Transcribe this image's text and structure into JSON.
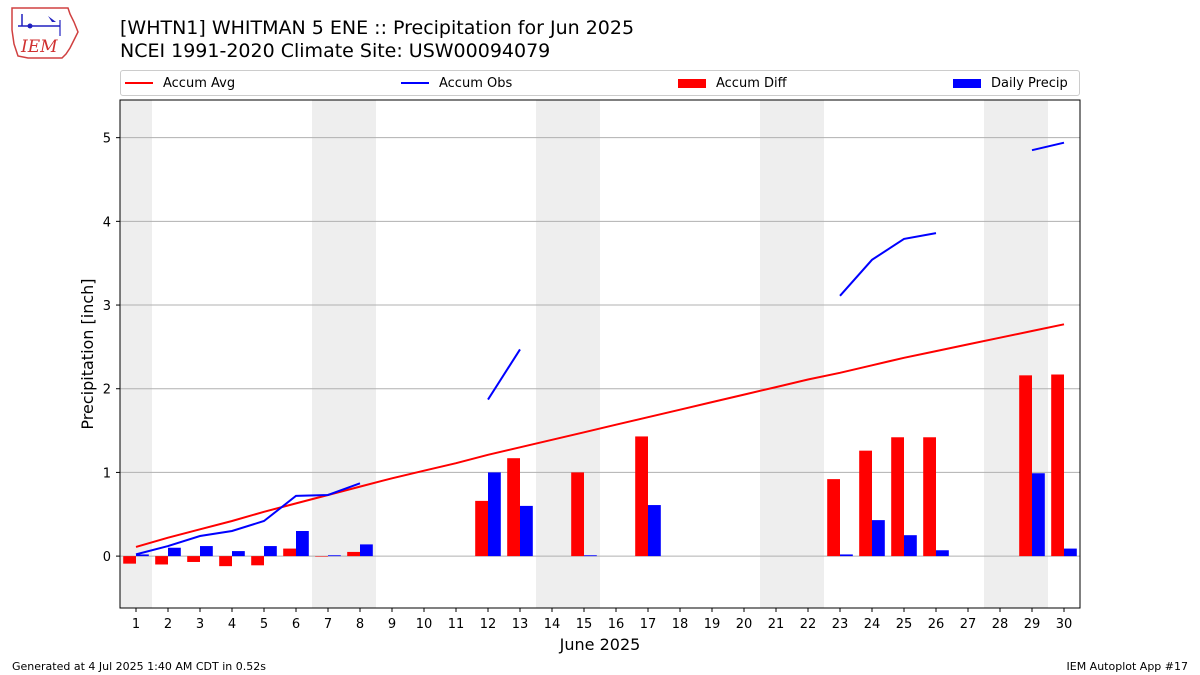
{
  "header": {
    "logo_text": "IEM",
    "title_line1": "[WHTN1] WHITMAN 5 ENE :: Precipitation for Jun 2025",
    "title_line2": "NCEI 1991-2020 Climate Site: USW00094079"
  },
  "legend": [
    {
      "label": "Accum Avg",
      "kind": "line",
      "color": "#ff0000"
    },
    {
      "label": "Accum Obs",
      "kind": "line",
      "color": "#0000ff"
    },
    {
      "label": "Accum Diff",
      "kind": "patch",
      "color": "#ff0000"
    },
    {
      "label": "Daily Precip",
      "kind": "patch",
      "color": "#0000ff"
    }
  ],
  "footer": {
    "left": "Generated at 4 Jul 2025 1:40 AM CDT in 0.52s",
    "right": "IEM Autoplot App #17"
  },
  "chart_data": {
    "type": "bar",
    "xlabel": "June 2025",
    "ylabel": "Precipitation [inch]",
    "ylim": [
      -0.62,
      5.45
    ],
    "yticks": [
      0,
      1,
      2,
      3,
      4,
      5
    ],
    "grid": "horizontal",
    "weekend_shading_days": [
      1,
      7,
      8,
      14,
      15,
      21,
      22,
      28,
      29
    ],
    "days": [
      1,
      2,
      3,
      4,
      5,
      6,
      7,
      8,
      9,
      10,
      11,
      12,
      13,
      14,
      15,
      16,
      17,
      18,
      19,
      20,
      21,
      22,
      23,
      24,
      25,
      26,
      27,
      28,
      29,
      30
    ],
    "series": [
      {
        "name": "Accum Avg",
        "kind": "line",
        "color": "#ff0000",
        "values": [
          0.11,
          0.22,
          0.32,
          0.42,
          0.53,
          0.63,
          0.73,
          0.83,
          0.93,
          1.02,
          1.11,
          1.21,
          1.3,
          1.39,
          1.48,
          1.57,
          1.66,
          1.75,
          1.84,
          1.93,
          2.02,
          2.11,
          2.19,
          2.28,
          2.37,
          2.45,
          2.53,
          2.61,
          2.69,
          2.77
        ]
      },
      {
        "name": "Accum Obs",
        "kind": "line",
        "color": "#0000ff",
        "values": [
          0.02,
          0.12,
          0.24,
          0.3,
          0.42,
          0.72,
          0.73,
          0.87,
          null,
          null,
          null,
          1.87,
          2.47,
          null,
          null,
          null,
          null,
          null,
          null,
          null,
          null,
          null,
          3.11,
          3.54,
          3.79,
          3.86,
          null,
          null,
          4.85,
          4.94
        ]
      },
      {
        "name": "Accum Diff",
        "kind": "bar",
        "color": "#ff0000",
        "values": [
          -0.09,
          -0.1,
          -0.07,
          -0.12,
          -0.11,
          0.09,
          0.0,
          0.05,
          null,
          null,
          null,
          0.66,
          1.17,
          null,
          1.0,
          null,
          1.43,
          null,
          null,
          null,
          null,
          null,
          0.92,
          1.26,
          1.42,
          1.42,
          null,
          null,
          2.16,
          2.17
        ]
      },
      {
        "name": "Daily Precip",
        "kind": "bar",
        "color": "#0000ff",
        "values": [
          0.02,
          0.1,
          0.12,
          0.06,
          0.12,
          0.3,
          0.01,
          0.14,
          null,
          null,
          null,
          1.0,
          0.6,
          null,
          0.01,
          null,
          0.61,
          null,
          null,
          null,
          null,
          null,
          0.02,
          0.43,
          0.25,
          0.07,
          null,
          null,
          0.99,
          0.09
        ]
      }
    ]
  }
}
